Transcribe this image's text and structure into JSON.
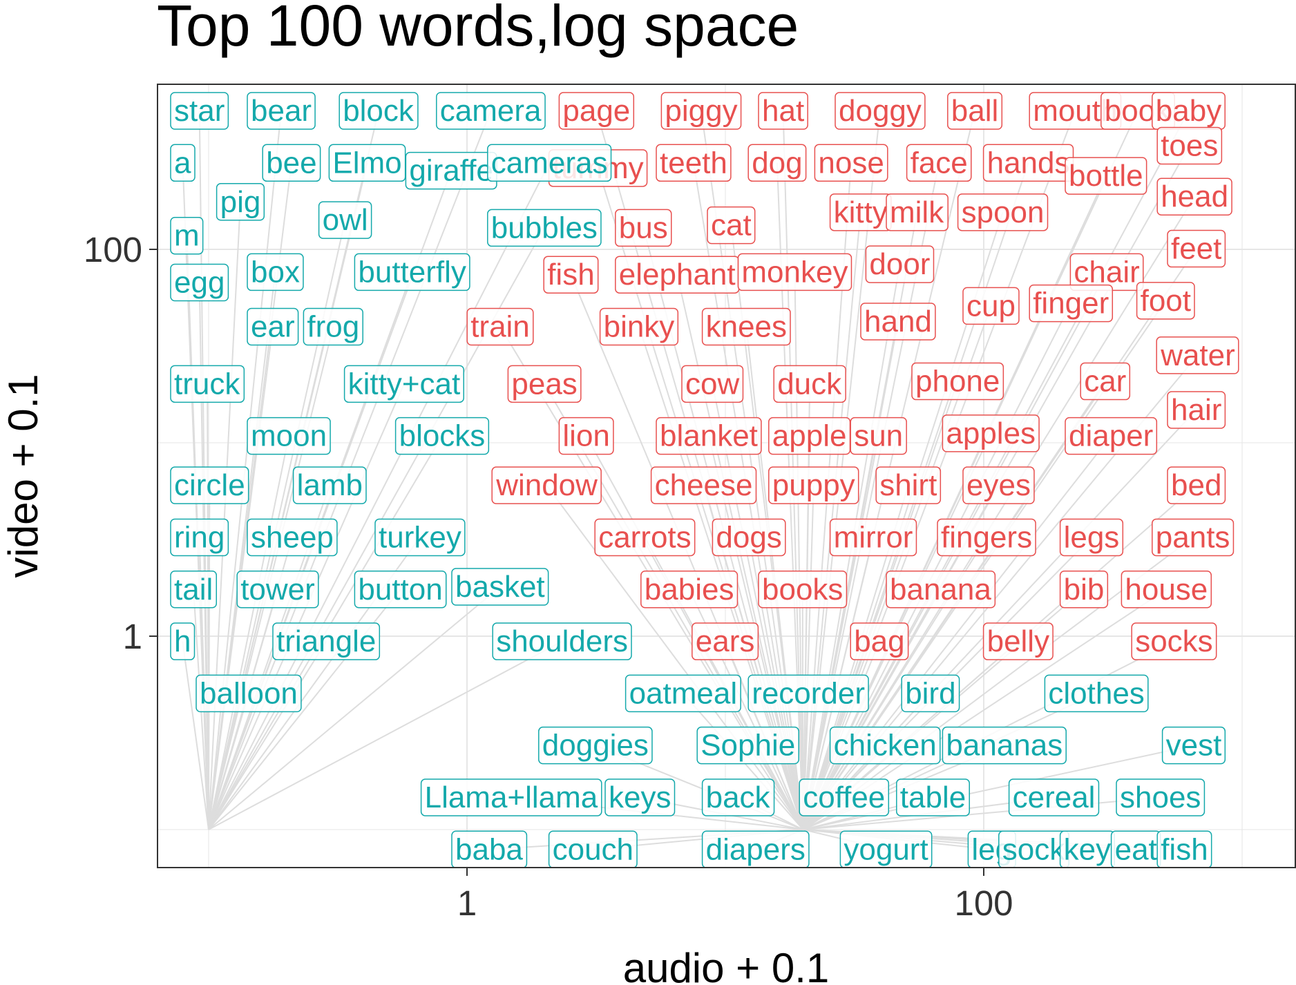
{
  "chart_data": {
    "type": "scatter",
    "title": "Top 100 words,log space",
    "xlabel": "audio + 0.1",
    "ylabel": "video + 0.1",
    "x_scale": "log10",
    "y_scale": "log10",
    "xlim": [
      0.1,
      1500
    ],
    "ylim": [
      0.1,
      1500
    ],
    "x_ticks": [
      {
        "value": 1,
        "label": "1"
      },
      {
        "value": 100,
        "label": "100"
      }
    ],
    "y_ticks": [
      {
        "value": 1,
        "label": "1"
      },
      {
        "value": 100,
        "label": "100"
      }
    ],
    "grid": true,
    "legend": "none",
    "group_colors": {
      "red": "#e8504f",
      "teal": "#14a9ab"
    },
    "points": [
      {
        "label": "star",
        "x": 0.1,
        "y": 0.1,
        "group": "teal",
        "row": 0,
        "col": 0
      },
      {
        "label": "bear",
        "x": 0.1,
        "y": 0.1,
        "group": "teal",
        "row": 0,
        "col": 1.5
      },
      {
        "label": "block",
        "x": 0.1,
        "y": 0.1,
        "group": "teal",
        "row": 0,
        "col": 3.3
      },
      {
        "label": "camera",
        "x": 0.1,
        "y": 0.1,
        "group": "teal",
        "row": 0,
        "col": 5.2
      },
      {
        "label": "page",
        "x": 20,
        "y": 0.1,
        "group": "red",
        "row": 0,
        "col": 7.6
      },
      {
        "label": "piggy",
        "x": 20,
        "y": 0.1,
        "group": "red",
        "row": 0,
        "col": 9.6
      },
      {
        "label": "hat",
        "x": 20,
        "y": 0.1,
        "group": "red",
        "row": 0,
        "col": 11.5
      },
      {
        "label": "doggy",
        "x": 20,
        "y": 0.1,
        "group": "red",
        "row": 0,
        "col": 13
      },
      {
        "label": "ball",
        "x": 20,
        "y": 0.1,
        "group": "red",
        "row": 0,
        "col": 15.2
      },
      {
        "label": "mouth",
        "x": 20,
        "y": 0.1,
        "group": "red",
        "row": 0,
        "col": 16.8
      },
      {
        "label": "book",
        "x": 20,
        "y": 0.1,
        "group": "red",
        "row": 0,
        "col": 18.2
      },
      {
        "label": "baby",
        "x": 20,
        "y": 0.1,
        "group": "red",
        "row": 0,
        "col": 19.2
      },
      {
        "label": "a",
        "x": 0.1,
        "y": 0.1,
        "group": "teal",
        "row": 1,
        "col": 0
      },
      {
        "label": "bee",
        "x": 0.1,
        "y": 0.1,
        "group": "teal",
        "row": 1,
        "col": 1.8
      },
      {
        "label": "Elmo",
        "x": 0.1,
        "y": 0.1,
        "group": "teal",
        "row": 1,
        "col": 3.1
      },
      {
        "label": "giraffe",
        "x": 0.1,
        "y": 0.1,
        "group": "teal",
        "row": 1.15,
        "col": 4.6
      },
      {
        "label": "tummy",
        "x": 20,
        "y": 0.1,
        "group": "red",
        "row": 1.1,
        "col": 7.4
      },
      {
        "label": "cameras",
        "x": 0.1,
        "y": 0.1,
        "group": "teal",
        "row": 1,
        "col": 6.2
      },
      {
        "label": "teeth",
        "x": 20,
        "y": 0.1,
        "group": "red",
        "row": 1,
        "col": 9.5
      },
      {
        "label": "dog",
        "x": 20,
        "y": 0.1,
        "group": "red",
        "row": 1,
        "col": 11.3
      },
      {
        "label": "nose",
        "x": 20,
        "y": 0.1,
        "group": "red",
        "row": 1,
        "col": 12.6
      },
      {
        "label": "face",
        "x": 20,
        "y": 0.1,
        "group": "red",
        "row": 1,
        "col": 14.4
      },
      {
        "label": "hands",
        "x": 20,
        "y": 0.1,
        "group": "red",
        "row": 1,
        "col": 15.9
      },
      {
        "label": "bottle",
        "x": 20,
        "y": 0.1,
        "group": "red",
        "row": 1.25,
        "col": 17.5
      },
      {
        "label": "toes",
        "x": 20,
        "y": 0.1,
        "group": "red",
        "row": 0.67,
        "col": 19.3
      },
      {
        "label": "pig",
        "x": 0.1,
        "y": 0.1,
        "group": "teal",
        "row": 1.75,
        "col": 0.9
      },
      {
        "label": "owl",
        "x": 0.1,
        "y": 0.1,
        "group": "teal",
        "row": 2.1,
        "col": 2.9
      },
      {
        "label": "bubbles",
        "x": 0.1,
        "y": 0.1,
        "group": "teal",
        "row": 2.25,
        "col": 6.2
      },
      {
        "label": "bus",
        "x": 20,
        "y": 0.1,
        "group": "red",
        "row": 2.25,
        "col": 8.7
      },
      {
        "label": "cat",
        "x": 20,
        "y": 0.1,
        "group": "red",
        "row": 2.2,
        "col": 10.5
      },
      {
        "label": "kitty",
        "x": 20,
        "y": 0.1,
        "group": "red",
        "row": 1.95,
        "col": 12.9
      },
      {
        "label": "milk",
        "x": 20,
        "y": 0.1,
        "group": "red",
        "row": 1.95,
        "col": 14
      },
      {
        "label": "spoon",
        "x": 20,
        "y": 0.1,
        "group": "red",
        "row": 1.95,
        "col": 15.4
      },
      {
        "label": "head",
        "x": 20,
        "y": 0.1,
        "group": "red",
        "row": 1.65,
        "col": 19.3
      },
      {
        "label": "m",
        "x": 0.1,
        "y": 0.1,
        "group": "teal",
        "row": 2.4,
        "col": 0
      },
      {
        "label": "feet",
        "x": 20,
        "y": 0.1,
        "group": "red",
        "row": 2.65,
        "col": 19.5
      },
      {
        "label": "egg",
        "x": 0.1,
        "y": 0.1,
        "group": "teal",
        "row": 3.3,
        "col": 0
      },
      {
        "label": "box",
        "x": 0.1,
        "y": 0.1,
        "group": "teal",
        "row": 3.1,
        "col": 1.5
      },
      {
        "label": "butterfly",
        "x": 0.1,
        "y": 0.1,
        "group": "teal",
        "row": 3.1,
        "col": 3.6
      },
      {
        "label": "fish",
        "x": 20,
        "y": 0.1,
        "group": "red",
        "row": 3.15,
        "col": 7.3
      },
      {
        "label": "elephant",
        "x": 20,
        "y": 0.1,
        "group": "red",
        "row": 3.15,
        "col": 8.7
      },
      {
        "label": "monkey",
        "x": 20,
        "y": 0.1,
        "group": "red",
        "row": 3.1,
        "col": 11.1
      },
      {
        "label": "door",
        "x": 20,
        "y": 0.1,
        "group": "red",
        "row": 2.95,
        "col": 13.6
      },
      {
        "label": "chair",
        "x": 20,
        "y": 0.1,
        "group": "red",
        "row": 3.1,
        "col": 17.6
      },
      {
        "label": "ear",
        "x": 0.1,
        "y": 0.1,
        "group": "teal",
        "row": 4.15,
        "col": 1.5
      },
      {
        "label": "frog",
        "x": 0.1,
        "y": 0.1,
        "group": "teal",
        "row": 4.15,
        "col": 2.6
      },
      {
        "label": "train",
        "x": 20,
        "y": 0.1,
        "group": "red",
        "row": 4.15,
        "col": 5.8
      },
      {
        "label": "binky",
        "x": 20,
        "y": 0.1,
        "group": "red",
        "row": 4.15,
        "col": 8.4
      },
      {
        "label": "knees",
        "x": 20,
        "y": 0.1,
        "group": "red",
        "row": 4.15,
        "col": 10.4
      },
      {
        "label": "hand",
        "x": 20,
        "y": 0.1,
        "group": "red",
        "row": 4.05,
        "col": 13.5
      },
      {
        "label": "cup",
        "x": 20,
        "y": 0.1,
        "group": "red",
        "row": 3.75,
        "col": 15.5
      },
      {
        "label": "finger",
        "x": 20,
        "y": 0.1,
        "group": "red",
        "row": 3.7,
        "col": 16.8
      },
      {
        "label": "foot",
        "x": 20,
        "y": 0.1,
        "group": "red",
        "row": 3.65,
        "col": 18.9
      },
      {
        "label": "water",
        "x": 20,
        "y": 0.1,
        "group": "red",
        "row": 4.7,
        "col": 19.3
      },
      {
        "label": "truck",
        "x": 0.1,
        "y": 0.1,
        "group": "teal",
        "row": 5.25,
        "col": 0
      },
      {
        "label": "kitty+cat",
        "x": 0.1,
        "y": 0.1,
        "group": "teal",
        "row": 5.25,
        "col": 3.4
      },
      {
        "label": "peas",
        "x": 20,
        "y": 0.1,
        "group": "red",
        "row": 5.25,
        "col": 6.6
      },
      {
        "label": "cow",
        "x": 20,
        "y": 0.1,
        "group": "red",
        "row": 5.25,
        "col": 10
      },
      {
        "label": "duck",
        "x": 20,
        "y": 0.1,
        "group": "red",
        "row": 5.25,
        "col": 11.8
      },
      {
        "label": "phone",
        "x": 20,
        "y": 0.1,
        "group": "red",
        "row": 5.2,
        "col": 14.5
      },
      {
        "label": "car",
        "x": 20,
        "y": 0.1,
        "group": "red",
        "row": 5.2,
        "col": 17.8
      },
      {
        "label": "hair",
        "x": 20,
        "y": 0.1,
        "group": "red",
        "row": 5.75,
        "col": 19.5
      },
      {
        "label": "moon",
        "x": 0.1,
        "y": 0.1,
        "group": "teal",
        "row": 6.25,
        "col": 1.5
      },
      {
        "label": "blocks",
        "x": 0.1,
        "y": 0.1,
        "group": "teal",
        "row": 6.25,
        "col": 4.4
      },
      {
        "label": "lion",
        "x": 20,
        "y": 0.1,
        "group": "red",
        "row": 6.25,
        "col": 7.6
      },
      {
        "label": "blanket",
        "x": 20,
        "y": 0.1,
        "group": "red",
        "row": 6.25,
        "col": 9.5
      },
      {
        "label": "apple",
        "x": 20,
        "y": 0.1,
        "group": "red",
        "row": 6.25,
        "col": 11.7
      },
      {
        "label": "sun",
        "x": 20,
        "y": 0.1,
        "group": "red",
        "row": 6.25,
        "col": 13.3
      },
      {
        "label": "apples",
        "x": 20,
        "y": 0.1,
        "group": "red",
        "row": 6.2,
        "col": 15.1
      },
      {
        "label": "diaper",
        "x": 20,
        "y": 0.1,
        "group": "red",
        "row": 6.25,
        "col": 17.5
      },
      {
        "label": "circle",
        "x": 0.1,
        "y": 0.1,
        "group": "teal",
        "row": 7.2,
        "col": 0
      },
      {
        "label": "lamb",
        "x": 0.1,
        "y": 0.1,
        "group": "teal",
        "row": 7.2,
        "col": 2.4
      },
      {
        "label": "window",
        "x": 20,
        "y": 0.1,
        "group": "red",
        "row": 7.2,
        "col": 6.3
      },
      {
        "label": "cheese",
        "x": 20,
        "y": 0.1,
        "group": "red",
        "row": 7.2,
        "col": 9.4
      },
      {
        "label": "puppy",
        "x": 20,
        "y": 0.1,
        "group": "red",
        "row": 7.2,
        "col": 11.7
      },
      {
        "label": "shirt",
        "x": 20,
        "y": 0.1,
        "group": "red",
        "row": 7.2,
        "col": 13.8
      },
      {
        "label": "eyes",
        "x": 20,
        "y": 0.1,
        "group": "red",
        "row": 7.2,
        "col": 15.5
      },
      {
        "label": "bed",
        "x": 20,
        "y": 0.1,
        "group": "red",
        "row": 7.2,
        "col": 19.5
      },
      {
        "label": "ring",
        "x": 0.1,
        "y": 0.1,
        "group": "teal",
        "row": 8.2,
        "col": 0
      },
      {
        "label": "sheep",
        "x": 0.1,
        "y": 0.1,
        "group": "teal",
        "row": 8.2,
        "col": 1.5
      },
      {
        "label": "turkey",
        "x": 0.1,
        "y": 0.1,
        "group": "teal",
        "row": 8.2,
        "col": 4
      },
      {
        "label": "carrots",
        "x": 20,
        "y": 0.1,
        "group": "red",
        "row": 8.2,
        "col": 8.3
      },
      {
        "label": "dogs",
        "x": 20,
        "y": 0.1,
        "group": "red",
        "row": 8.2,
        "col": 10.6
      },
      {
        "label": "mirror",
        "x": 20,
        "y": 0.1,
        "group": "red",
        "row": 8.2,
        "col": 12.9
      },
      {
        "label": "fingers",
        "x": 20,
        "y": 0.1,
        "group": "red",
        "row": 8.2,
        "col": 15
      },
      {
        "label": "legs",
        "x": 20,
        "y": 0.1,
        "group": "red",
        "row": 8.2,
        "col": 17.4
      },
      {
        "label": "pants",
        "x": 20,
        "y": 0.1,
        "group": "red",
        "row": 8.2,
        "col": 19.2
      },
      {
        "label": "tail",
        "x": 0.1,
        "y": 0.1,
        "group": "teal",
        "row": 9.2,
        "col": 0
      },
      {
        "label": "tower",
        "x": 0.1,
        "y": 0.1,
        "group": "teal",
        "row": 9.2,
        "col": 1.3
      },
      {
        "label": "button",
        "x": 0.1,
        "y": 0.1,
        "group": "teal",
        "row": 9.2,
        "col": 3.6
      },
      {
        "label": "basket",
        "x": 0.1,
        "y": 0.1,
        "group": "teal",
        "row": 9.15,
        "col": 5.5
      },
      {
        "label": "babies",
        "x": 20,
        "y": 0.1,
        "group": "red",
        "row": 9.2,
        "col": 9.2
      },
      {
        "label": "books",
        "x": 20,
        "y": 0.1,
        "group": "red",
        "row": 9.2,
        "col": 11.5
      },
      {
        "label": "banana",
        "x": 20,
        "y": 0.1,
        "group": "red",
        "row": 9.2,
        "col": 14
      },
      {
        "label": "bib",
        "x": 20,
        "y": 0.1,
        "group": "red",
        "row": 9.2,
        "col": 17.4
      },
      {
        "label": "house",
        "x": 20,
        "y": 0.1,
        "group": "red",
        "row": 9.2,
        "col": 18.6
      },
      {
        "label": "h",
        "x": 0.1,
        "y": 0.1,
        "group": "teal",
        "row": 10.2,
        "col": 0
      },
      {
        "label": "triangle",
        "x": 0.1,
        "y": 0.1,
        "group": "teal",
        "row": 10.2,
        "col": 2
      },
      {
        "label": "shoulders",
        "x": 0.1,
        "y": 0.1,
        "group": "teal",
        "row": 10.2,
        "col": 6.3
      },
      {
        "label": "ears",
        "x": 20,
        "y": 0.1,
        "group": "red",
        "row": 10.2,
        "col": 10.2
      },
      {
        "label": "bag",
        "x": 20,
        "y": 0.1,
        "group": "red",
        "row": 10.2,
        "col": 13.3
      },
      {
        "label": "belly",
        "x": 20,
        "y": 0.1,
        "group": "red",
        "row": 10.2,
        "col": 15.9
      },
      {
        "label": "socks",
        "x": 20,
        "y": 0.1,
        "group": "red",
        "row": 10.2,
        "col": 18.8
      },
      {
        "label": "balloon",
        "x": 0.1,
        "y": 0.1,
        "group": "teal",
        "row": 11.2,
        "col": 0.5
      },
      {
        "label": "oatmeal",
        "x": 20,
        "y": 0.1,
        "group": "teal",
        "row": 11.2,
        "col": 8.9
      },
      {
        "label": "recorder",
        "x": 20,
        "y": 0.1,
        "group": "teal",
        "row": 11.2,
        "col": 11.3
      },
      {
        "label": "bird",
        "x": 20,
        "y": 0.1,
        "group": "teal",
        "row": 11.2,
        "col": 14.3
      },
      {
        "label": "clothes",
        "x": 20,
        "y": 0.1,
        "group": "teal",
        "row": 11.2,
        "col": 17.1
      },
      {
        "label": "doggies",
        "x": 20,
        "y": 0.1,
        "group": "teal",
        "row": 12.2,
        "col": 7.2
      },
      {
        "label": "Sophie",
        "x": 20,
        "y": 0.1,
        "group": "teal",
        "row": 12.2,
        "col": 10.3
      },
      {
        "label": "chicken",
        "x": 20,
        "y": 0.1,
        "group": "teal",
        "row": 12.2,
        "col": 12.9
      },
      {
        "label": "bananas",
        "x": 20,
        "y": 0.1,
        "group": "teal",
        "row": 12.2,
        "col": 15.1
      },
      {
        "label": "vest",
        "x": 20,
        "y": 0.1,
        "group": "teal",
        "row": 12.2,
        "col": 19.4
      },
      {
        "label": "Llama+llama",
        "x": 20,
        "y": 0.1,
        "group": "teal",
        "row": 13.2,
        "col": 4.9
      },
      {
        "label": "keys",
        "x": 20,
        "y": 0.1,
        "group": "teal",
        "row": 13.2,
        "col": 8.5
      },
      {
        "label": "back",
        "x": 20,
        "y": 0.1,
        "group": "teal",
        "row": 13.2,
        "col": 10.4
      },
      {
        "label": "coffee",
        "x": 20,
        "y": 0.1,
        "group": "teal",
        "row": 13.2,
        "col": 12.3
      },
      {
        "label": "table",
        "x": 20,
        "y": 0.1,
        "group": "teal",
        "row": 13.2,
        "col": 14.2
      },
      {
        "label": "cereal",
        "x": 20,
        "y": 0.1,
        "group": "teal",
        "row": 13.2,
        "col": 16.4
      },
      {
        "label": "shoes",
        "x": 20,
        "y": 0.1,
        "group": "teal",
        "row": 13.2,
        "col": 18.5
      },
      {
        "label": "baba",
        "x": 20,
        "y": 0.1,
        "group": "teal",
        "row": 14.2,
        "col": 5.5
      },
      {
        "label": "couch",
        "x": 20,
        "y": 0.1,
        "group": "teal",
        "row": 14.2,
        "col": 7.4
      },
      {
        "label": "diapers",
        "x": 20,
        "y": 0.1,
        "group": "teal",
        "row": 14.2,
        "col": 10.4
      },
      {
        "label": "yogurt",
        "x": 20,
        "y": 0.1,
        "group": "teal",
        "row": 14.2,
        "col": 13.1
      },
      {
        "label": "leg",
        "x": 20,
        "y": 0.1,
        "group": "teal",
        "row": 14.2,
        "col": 15.6
      },
      {
        "label": "sock",
        "x": 20,
        "y": 0.1,
        "group": "teal",
        "row": 14.2,
        "col": 16.2
      },
      {
        "label": "key",
        "x": 20,
        "y": 0.1,
        "group": "teal",
        "row": 14.2,
        "col": 17.4
      },
      {
        "label": "eat",
        "x": 20,
        "y": 0.1,
        "group": "teal",
        "row": 14.2,
        "col": 18.4
      },
      {
        "label": "fish",
        "x": 20,
        "y": 0.1,
        "group": "teal",
        "row": 14.2,
        "col": 19.3
      }
    ]
  }
}
